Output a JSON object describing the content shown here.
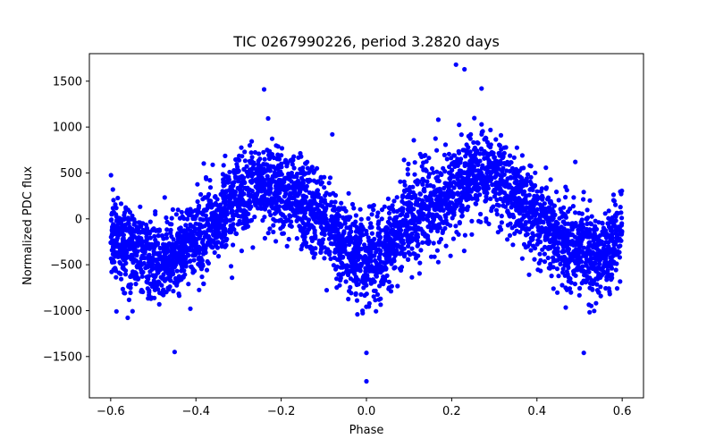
{
  "chart_data": {
    "type": "scatter",
    "title": "TIC 0267990226, period 3.2820 days",
    "xlabel": "Phase",
    "ylabel": "Normalized PDC flux",
    "xlim": [
      -0.65,
      0.65
    ],
    "ylim": [
      -1950,
      1800
    ],
    "xticks": [
      -0.6,
      -0.4,
      -0.2,
      0.0,
      0.2,
      0.4,
      0.6
    ],
    "xtick_labels": [
      "−0.6",
      "−0.4",
      "−0.2",
      "0.0",
      "0.2",
      "0.4",
      "0.6"
    ],
    "yticks": [
      -1500,
      -1000,
      -500,
      0,
      500,
      1000,
      1500
    ],
    "ytick_labels": [
      "−1500",
      "−1000",
      "−500",
      "0",
      "500",
      "1000",
      "1500"
    ],
    "grid": false,
    "marker_color": "#0000ff",
    "series": [
      {
        "phase_range": [
          -0.6,
          0.6
        ],
        "trend": {
          "x": [
            -0.6,
            -0.55,
            -0.5,
            -0.47,
            -0.45,
            -0.4,
            -0.35,
            -0.3,
            -0.25,
            -0.2,
            -0.15,
            -0.1,
            -0.05,
            0.0,
            0.05,
            0.1,
            0.15,
            0.2,
            0.25,
            0.27,
            0.3,
            0.35,
            0.4,
            0.45,
            0.5,
            0.53,
            0.55,
            0.6
          ],
          "y": [
            -150,
            -350,
            -450,
            -480,
            -420,
            -200,
            0,
            200,
            350,
            300,
            150,
            -50,
            -300,
            -470,
            -350,
            0,
            150,
            300,
            500,
            520,
            450,
            250,
            0,
            -200,
            -350,
            -420,
            -380,
            -180
          ]
        },
        "spread": 420,
        "outliers": {
          "x": [
            0.21,
            0.23,
            -0.24,
            0.27,
            0.0,
            0.0,
            -0.45,
            0.51,
            -0.08,
            0.49
          ],
          "y": [
            1680,
            1630,
            1410,
            1420,
            -1770,
            -1460,
            -1450,
            -1460,
            920,
            620
          ]
        }
      }
    ]
  }
}
